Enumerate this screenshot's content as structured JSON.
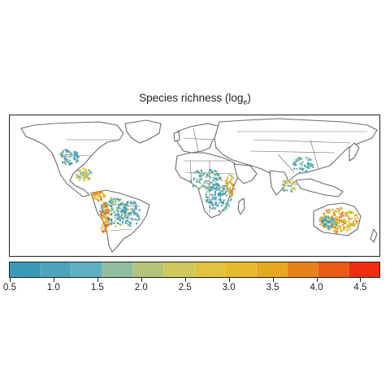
{
  "title": {
    "main": "Species richness (log",
    "subscript": "e",
    "closing": ")"
  },
  "legend": {
    "min": 0.5,
    "max": 4.7,
    "ticks": [
      "0.5",
      "1.0",
      "1.5",
      "2.0",
      "2.5",
      "3.0",
      "3.5",
      "4.0",
      "4.5"
    ],
    "colors": [
      "#3a9ab6",
      "#4ea4bd",
      "#5fafc4",
      "#92bda0",
      "#b3c47a",
      "#cfc85a",
      "#e2c43c",
      "#e7b92c",
      "#e6a81e",
      "#e7821a",
      "#eb5a15",
      "#ef2d10"
    ]
  },
  "map": {
    "land_outline_color": "#6b6b6b",
    "ocean_color": "#ffffff"
  }
}
